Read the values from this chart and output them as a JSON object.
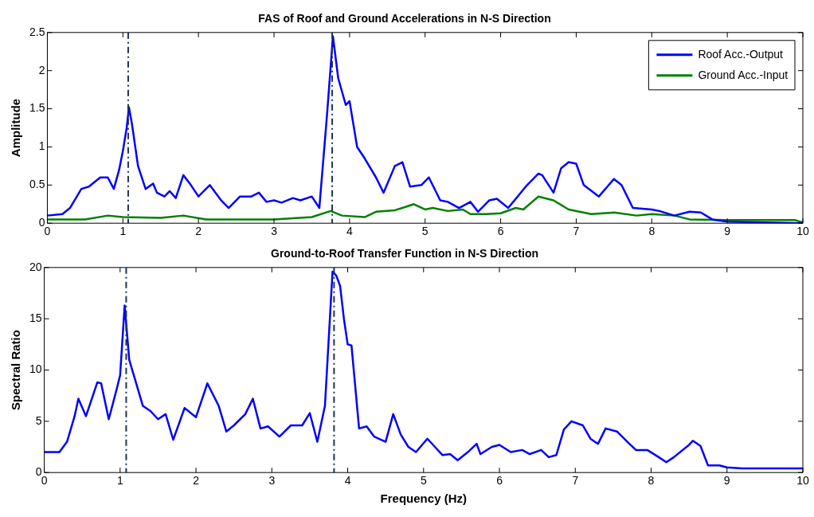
{
  "chart_data": [
    {
      "type": "line",
      "title": "FAS of Roof and Ground Accelerations in N-S Direction",
      "ylabel": "Amplitude",
      "xlim": [
        0,
        10
      ],
      "xticks": [
        0,
        1,
        2,
        3,
        4,
        5,
        6,
        7,
        8,
        9,
        10
      ],
      "ylim": [
        0,
        2.5
      ],
      "yticks": [
        0,
        0.5,
        1,
        1.5,
        2,
        2.5
      ],
      "grid": false,
      "legend": "top right",
      "line_style": "solid",
      "marker": "none",
      "series": [
        {
          "name": "Roof Acc.-Output",
          "color": "#0000ff",
          "x": [
            0,
            0.2,
            0.3,
            0.45,
            0.55,
            0.7,
            0.8,
            0.88,
            0.95,
            1.0,
            1.05,
            1.08,
            1.12,
            1.2,
            1.3,
            1.4,
            1.45,
            1.55,
            1.62,
            1.7,
            1.8,
            1.9,
            2.0,
            2.15,
            2.3,
            2.4,
            2.55,
            2.7,
            2.8,
            2.9,
            3.0,
            3.1,
            3.25,
            3.35,
            3.5,
            3.6,
            3.7,
            3.78,
            3.85,
            3.95,
            4.0,
            4.1,
            4.2,
            4.35,
            4.45,
            4.6,
            4.7,
            4.8,
            4.95,
            5.05,
            5.2,
            5.3,
            5.45,
            5.6,
            5.7,
            5.85,
            5.95,
            6.1,
            6.35,
            6.5,
            6.55,
            6.7,
            6.8,
            6.9,
            7.0,
            7.1,
            7.3,
            7.5,
            7.6,
            7.75,
            8.0,
            8.1,
            8.3,
            8.5,
            8.65,
            8.8,
            9.0,
            9.5,
            10
          ],
          "values": [
            0.1,
            0.12,
            0.2,
            0.45,
            0.48,
            0.6,
            0.6,
            0.45,
            0.7,
            0.95,
            1.25,
            1.52,
            1.3,
            0.75,
            0.45,
            0.52,
            0.4,
            0.35,
            0.42,
            0.33,
            0.63,
            0.5,
            0.35,
            0.5,
            0.3,
            0.2,
            0.35,
            0.35,
            0.4,
            0.28,
            0.3,
            0.27,
            0.33,
            0.3,
            0.35,
            0.2,
            1.4,
            2.45,
            1.9,
            1.55,
            1.6,
            1.0,
            0.85,
            0.6,
            0.4,
            0.75,
            0.8,
            0.48,
            0.5,
            0.6,
            0.3,
            0.28,
            0.2,
            0.28,
            0.15,
            0.3,
            0.32,
            0.2,
            0.5,
            0.65,
            0.63,
            0.4,
            0.72,
            0.8,
            0.78,
            0.5,
            0.35,
            0.58,
            0.5,
            0.2,
            0.18,
            0.16,
            0.1,
            0.15,
            0.14,
            0.05,
            0.02,
            0.01,
            0
          ]
        },
        {
          "name": "Ground Acc.-Input",
          "color": "#008000",
          "x": [
            0,
            0.5,
            0.8,
            1.0,
            1.5,
            1.8,
            2.1,
            3.0,
            3.5,
            3.75,
            3.9,
            4.2,
            4.35,
            4.6,
            4.7,
            4.85,
            5.0,
            5.1,
            5.3,
            5.5,
            5.6,
            5.8,
            6.0,
            6.2,
            6.3,
            6.5,
            6.7,
            6.9,
            7.2,
            7.5,
            7.8,
            8.0,
            8.3,
            8.5,
            9.0,
            9.9,
            10
          ],
          "values": [
            0.05,
            0.05,
            0.1,
            0.08,
            0.07,
            0.1,
            0.05,
            0.05,
            0.08,
            0.16,
            0.1,
            0.08,
            0.15,
            0.17,
            0.2,
            0.25,
            0.18,
            0.2,
            0.16,
            0.18,
            0.12,
            0.12,
            0.13,
            0.2,
            0.18,
            0.35,
            0.3,
            0.18,
            0.12,
            0.14,
            0.1,
            0.12,
            0.1,
            0.05,
            0.04,
            0.04,
            0.01
          ]
        }
      ],
      "ref_lines": [
        {
          "axis": "x",
          "value": 1.07,
          "color": "#1c3553",
          "line_style": "dashed"
        },
        {
          "axis": "x",
          "value": 3.77,
          "color": "#1c3553",
          "line_style": "dashed"
        }
      ]
    },
    {
      "type": "line",
      "title": "Ground-to-Roof Transfer Function in N-S Direction",
      "xlabel": "Frequency (Hz)",
      "ylabel": "Spectral Ratio",
      "xlim": [
        0,
        10
      ],
      "xticks": [
        0,
        1,
        2,
        3,
        4,
        5,
        6,
        7,
        8,
        9,
        10
      ],
      "ylim": [
        0,
        20
      ],
      "yticks": [
        0,
        5,
        10,
        15,
        20
      ],
      "grid": false,
      "legend": false,
      "line_style": "solid",
      "marker": "none",
      "series": [
        {
          "color": "#0000ff",
          "x": [
            0,
            0.2,
            0.3,
            0.4,
            0.45,
            0.55,
            0.7,
            0.75,
            0.85,
            0.95,
            1.0,
            1.06,
            1.12,
            1.2,
            1.3,
            1.4,
            1.5,
            1.6,
            1.7,
            1.85,
            2.0,
            2.15,
            2.3,
            2.4,
            2.5,
            2.65,
            2.75,
            2.85,
            2.95,
            3.1,
            3.25,
            3.4,
            3.5,
            3.6,
            3.7,
            3.8,
            3.85,
            3.9,
            3.95,
            4.0,
            4.05,
            4.15,
            4.25,
            4.35,
            4.5,
            4.6,
            4.7,
            4.8,
            4.9,
            5.05,
            5.15,
            5.25,
            5.35,
            5.45,
            5.6,
            5.7,
            5.75,
            5.9,
            6.0,
            6.15,
            6.3,
            6.4,
            6.55,
            6.65,
            6.75,
            6.85,
            6.95,
            7.1,
            7.2,
            7.3,
            7.4,
            7.55,
            7.7,
            7.8,
            7.95,
            8.1,
            8.2,
            8.3,
            8.5,
            8.55,
            8.65,
            8.75,
            8.9,
            9.0,
            9.2,
            10
          ],
          "values": [
            2,
            2,
            3,
            5.5,
            7.2,
            5.5,
            8.8,
            8.7,
            5.2,
            8.0,
            9.5,
            16.3,
            11,
            9,
            6.5,
            6,
            5.2,
            5.7,
            3.2,
            6.3,
            5.4,
            8.7,
            6.5,
            4,
            4.6,
            5.7,
            7.2,
            4.3,
            4.5,
            3.5,
            4.6,
            4.6,
            5.8,
            3,
            6.5,
            19.6,
            19.2,
            18.2,
            15,
            12.5,
            12.4,
            4.3,
            4.5,
            3.5,
            3,
            5.7,
            3.7,
            2.5,
            2.0,
            3.3,
            2.5,
            1.7,
            1.8,
            1.2,
            2.1,
            2.8,
            1.8,
            2.5,
            2.7,
            2.0,
            2.2,
            1.8,
            2.2,
            1.5,
            1.7,
            4.2,
            5.0,
            4.6,
            3.3,
            2.8,
            4.3,
            4.0,
            2.9,
            2.2,
            2.2,
            1.5,
            1.0,
            1.5,
            2.7,
            3.1,
            2.6,
            0.7,
            0.7,
            0.5,
            0.4,
            0.4
          ]
        }
      ],
      "ref_lines": [
        {
          "axis": "x",
          "value": 1.08,
          "color": "#1c3553",
          "line_style": "dashed"
        },
        {
          "axis": "x",
          "value": 3.82,
          "color": "#1c3553",
          "line_style": "dashed"
        }
      ]
    }
  ]
}
